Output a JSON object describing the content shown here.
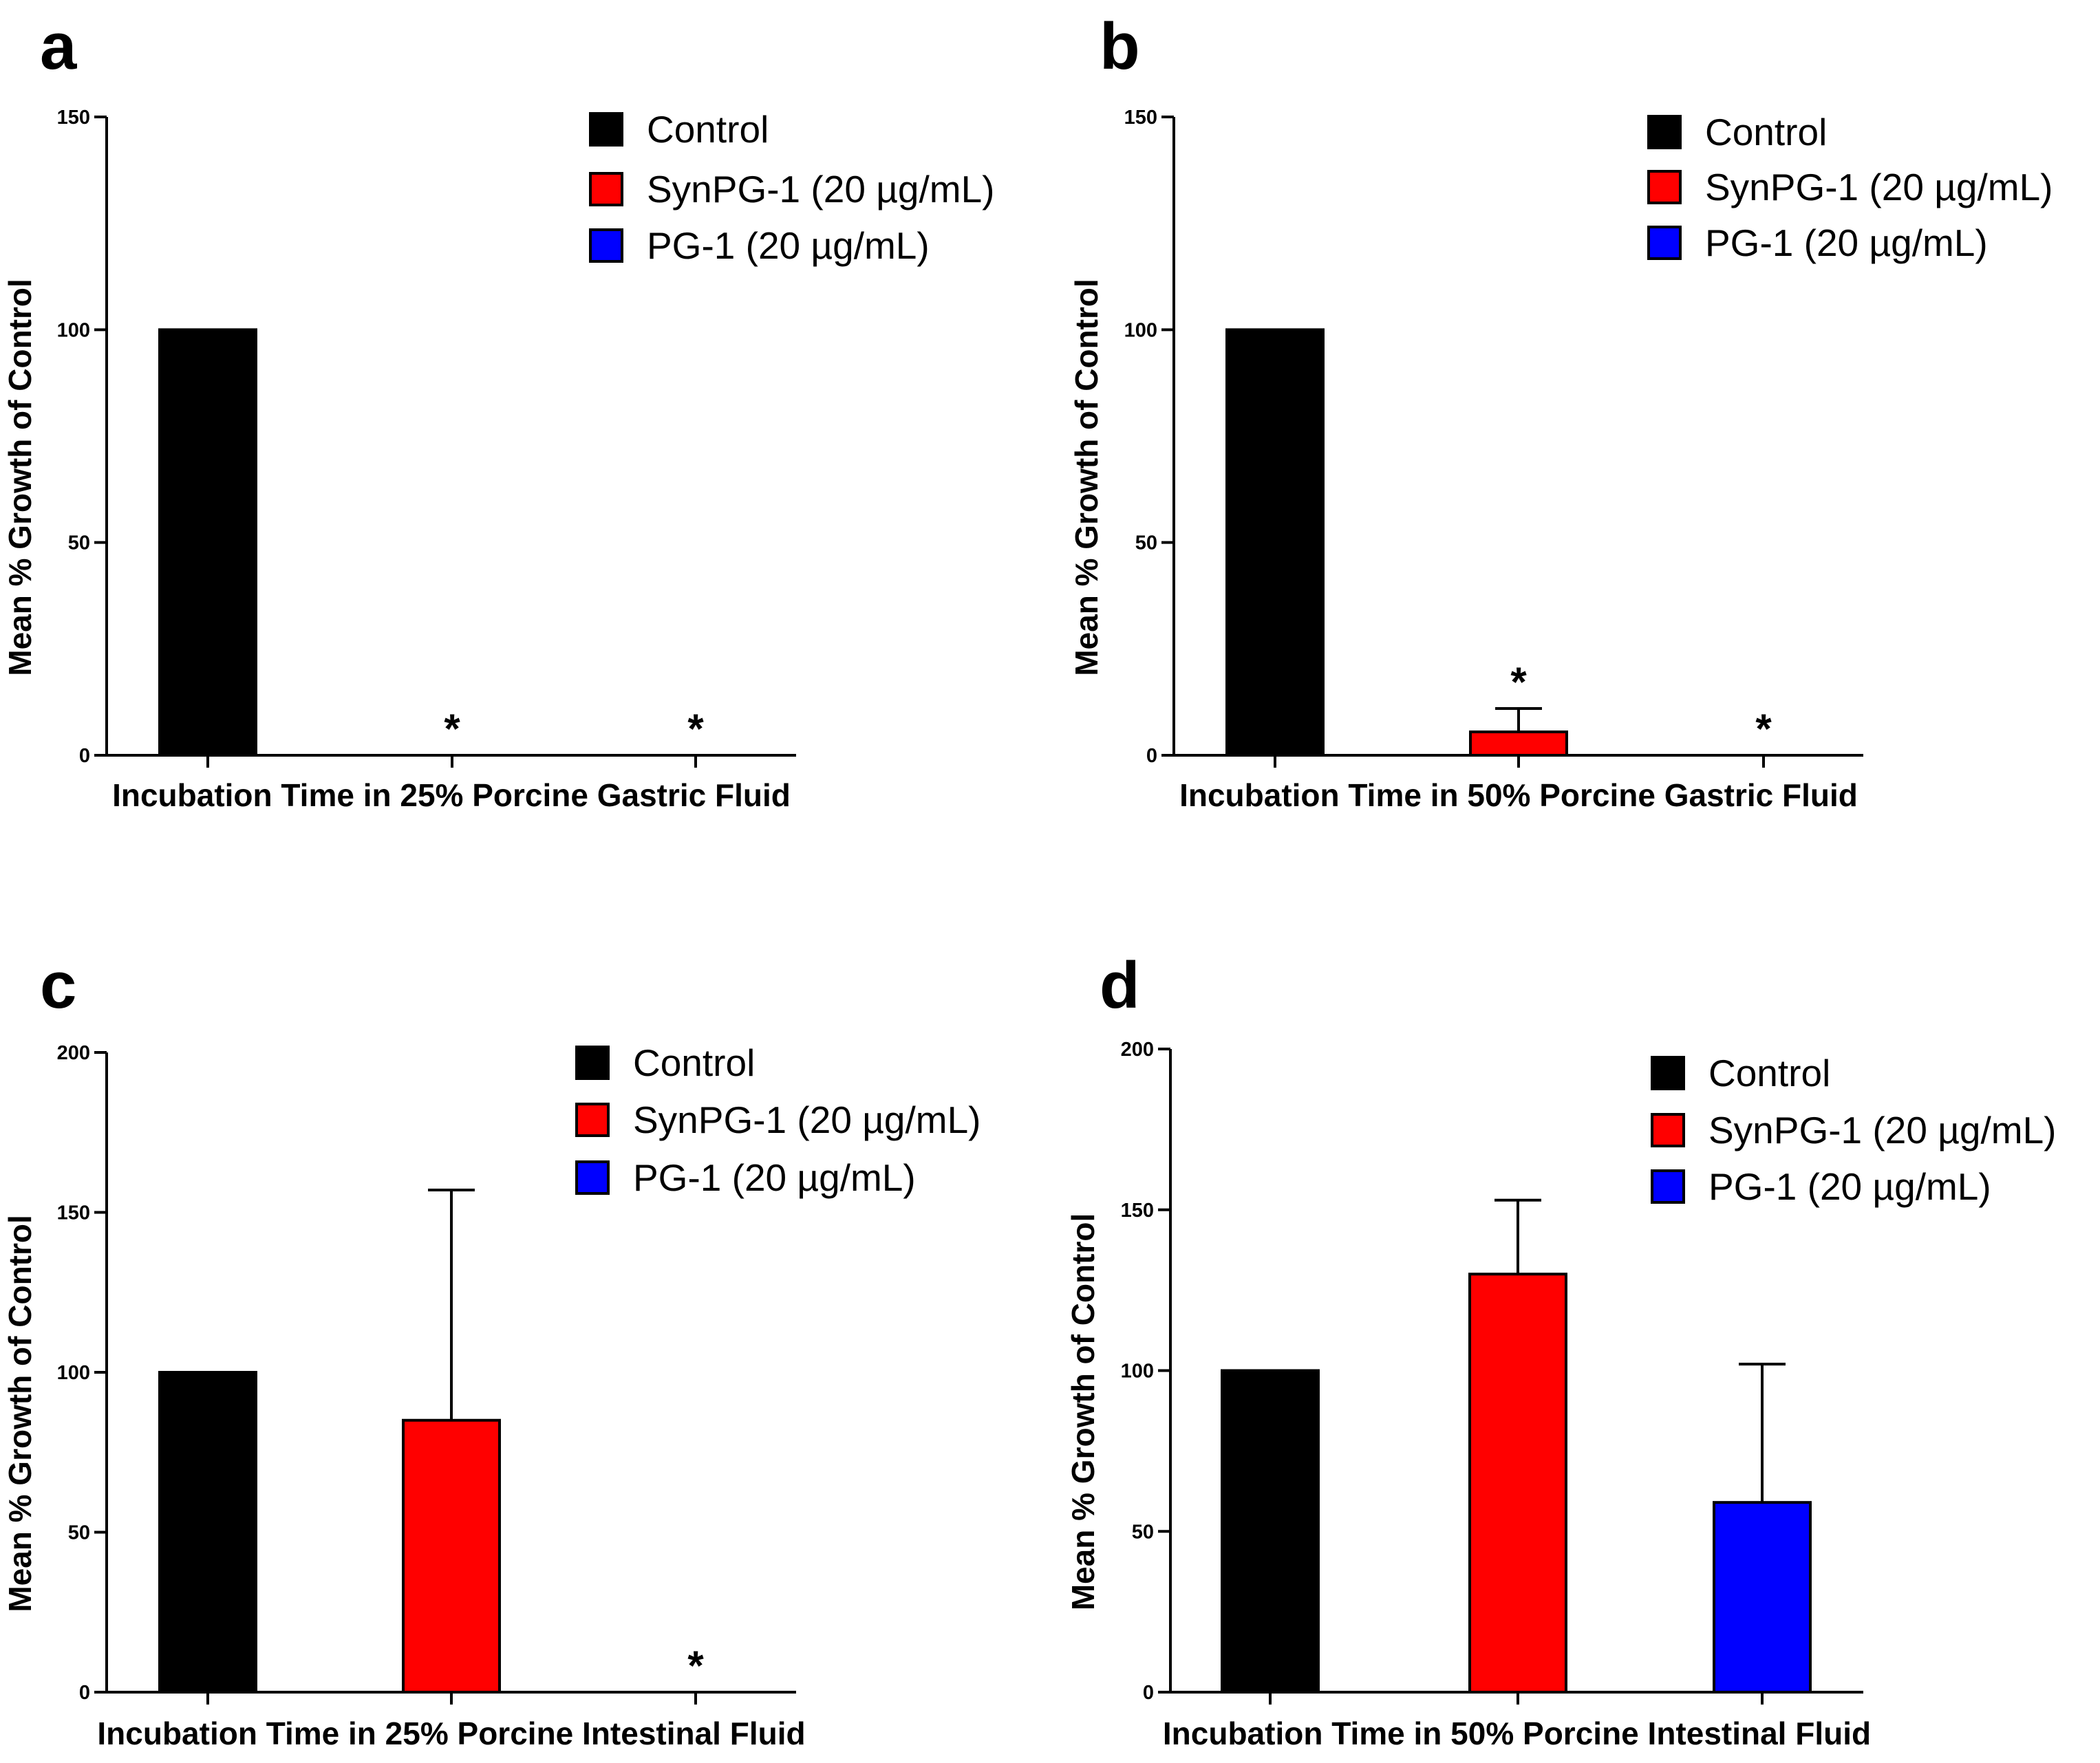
{
  "chart_data": [
    {
      "panel": "a",
      "type": "bar",
      "ylabel": "Mean % Growth of Control",
      "xlabel": "Incubation Time in 25% Porcine Gastric Fluid",
      "ylim": [
        0,
        150
      ],
      "yticks": [
        0,
        50,
        100,
        150
      ],
      "legend": "top-right",
      "series": [
        {
          "name": "Control",
          "color": "#000000",
          "value": 100,
          "error": 0,
          "marker": ""
        },
        {
          "name": "SynPG-1 (20 µg/mL)",
          "color": "#ff0000",
          "value": 0,
          "error": 0,
          "marker": "*"
        },
        {
          "name": "PG-1 (20 µg/mL)",
          "color": "#0000ff",
          "value": 0,
          "error": 0,
          "marker": "*"
        }
      ]
    },
    {
      "panel": "b",
      "type": "bar",
      "ylabel": "Mean % Growth of Control",
      "xlabel": "Incubation Time in 50% Porcine Gastric Fluid",
      "ylim": [
        0,
        150
      ],
      "yticks": [
        0,
        50,
        100,
        150
      ],
      "legend": "top-right",
      "series": [
        {
          "name": "Control",
          "color": "#000000",
          "value": 100,
          "error": 0,
          "marker": ""
        },
        {
          "name": "SynPG-1 (20 µg/mL)",
          "color": "#ff0000",
          "value": 5.5,
          "error": 5.5,
          "marker": "*"
        },
        {
          "name": "PG-1 (20 µg/mL)",
          "color": "#0000ff",
          "value": 0,
          "error": 0,
          "marker": "*"
        }
      ]
    },
    {
      "panel": "c",
      "type": "bar",
      "ylabel": "Mean % Growth of Control",
      "xlabel": "Incubation Time in 25% Porcine Intestinal Fluid",
      "ylim": [
        0,
        200
      ],
      "yticks": [
        0,
        50,
        100,
        150,
        200
      ],
      "legend": "top-right",
      "series": [
        {
          "name": "Control",
          "color": "#000000",
          "value": 100,
          "error": 0,
          "marker": ""
        },
        {
          "name": "SynPG-1 (20 µg/mL)",
          "color": "#ff0000",
          "value": 85,
          "error": 72,
          "marker": ""
        },
        {
          "name": "PG-1 (20 µg/mL)",
          "color": "#0000ff",
          "value": 0,
          "error": 0,
          "marker": "*"
        }
      ]
    },
    {
      "panel": "d",
      "type": "bar",
      "ylabel": "Mean % Growth of Control",
      "xlabel": "Incubation Time in 50% Porcine Intestinal Fluid",
      "ylim": [
        0,
        200
      ],
      "yticks": [
        0,
        50,
        100,
        150,
        200
      ],
      "legend": "top-right",
      "series": [
        {
          "name": "Control",
          "color": "#000000",
          "value": 100,
          "error": 0,
          "marker": ""
        },
        {
          "name": "SynPG-1 (20 µg/mL)",
          "color": "#ff0000",
          "value": 130,
          "error": 23,
          "marker": ""
        },
        {
          "name": "PG-1 (20 µg/mL)",
          "color": "#0000ff",
          "value": 59,
          "error": 43,
          "marker": ""
        }
      ]
    }
  ]
}
